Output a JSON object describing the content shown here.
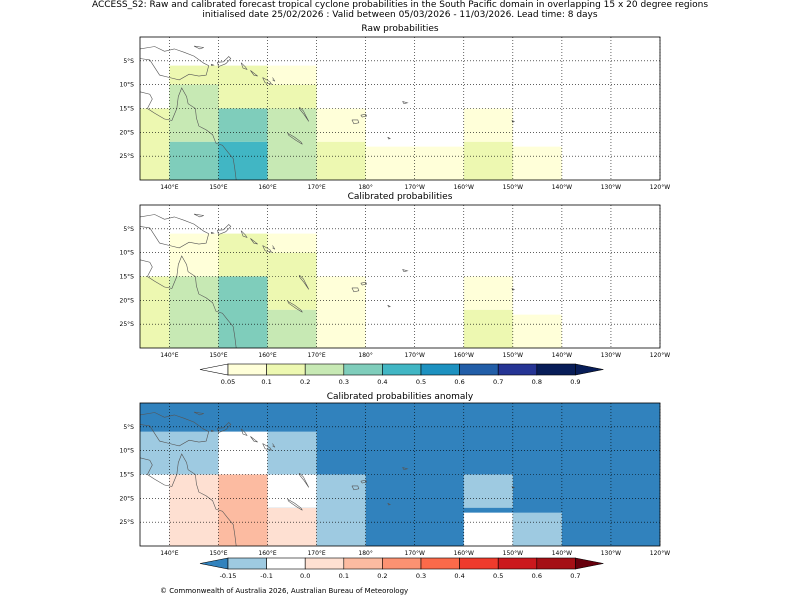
{
  "header": {
    "line1": "ACCESS_S2: Raw and calibrated forecast tropical cyclone probabilities in the South Pacific domain in overlapping 15 x 20 degree regions",
    "line2": "initialised date 25/02/2026 :  Valid between 05/03/2026 - 11/03/2026. Lead time: 8 days"
  },
  "footer": "© Commonwealth of Australia 2026, Australian Bureau of Meteorology",
  "lon_ticks": [
    "140°E",
    "150°E",
    "160°E",
    "170°E",
    "180°",
    "170°W",
    "160°W",
    "150°W",
    "140°W",
    "130°W",
    "120°W"
  ],
  "lat_ticks": [
    "5°S",
    "10°S",
    "15°S",
    "20°S",
    "25°S"
  ],
  "prob_colorbar": {
    "levels": [
      "0.05",
      "0.1",
      "0.2",
      "0.3",
      "0.4",
      "0.5",
      "0.6",
      "0.7",
      "0.8",
      "0.9"
    ],
    "colors": [
      "#ffffd9",
      "#edf8b1",
      "#c7e9b4",
      "#7fcdbb",
      "#41b6c4",
      "#1d91c0",
      "#225ea8",
      "#253494",
      "#081d58"
    ],
    "under": "#ffffff",
    "over": "#081d58"
  },
  "anom_colorbar": {
    "levels": [
      "-0.15",
      "-0.1",
      "0.0",
      "0.1",
      "0.2",
      "0.3",
      "0.4",
      "0.5",
      "0.6",
      "0.7"
    ],
    "colors": [
      "#9ecae1",
      "#ffffff",
      "#fee0d2",
      "#fcbba1",
      "#fc9272",
      "#fb6a4a",
      "#ef3b2c",
      "#cb181d",
      "#a50f15"
    ],
    "under": "#3182bd",
    "over": "#67000d"
  },
  "chart_data": [
    {
      "type": "heatmap",
      "title": "Raw probabilities",
      "lon_range": [
        134,
        240
      ],
      "lat_range": [
        -30,
        0
      ],
      "cells_unit": "probability",
      "cells": [
        {
          "lon": [
            134,
            140
          ],
          "lat": [
            -30,
            -15
          ],
          "value": 0.15
        },
        {
          "lon": [
            140,
            150
          ],
          "lat": [
            -10,
            -6
          ],
          "value": 0.1
        },
        {
          "lon": [
            150,
            160
          ],
          "lat": [
            -15,
            -6
          ],
          "value": 0.15
        },
        {
          "lon": [
            160,
            170
          ],
          "lat": [
            -10,
            -6
          ],
          "value": 0.05
        },
        {
          "lon": [
            160,
            170
          ],
          "lat": [
            -15,
            -10
          ],
          "value": 0.15
        },
        {
          "lon": [
            140,
            150
          ],
          "lat": [
            -22,
            -10
          ],
          "value": 0.25
        },
        {
          "lon": [
            140,
            150
          ],
          "lat": [
            -30,
            -22
          ],
          "value": 0.35
        },
        {
          "lon": [
            150,
            160
          ],
          "lat": [
            -22,
            -15
          ],
          "value": 0.35
        },
        {
          "lon": [
            150,
            160
          ],
          "lat": [
            -30,
            -22
          ],
          "value": 0.45
        },
        {
          "lon": [
            160,
            170
          ],
          "lat": [
            -30,
            -15
          ],
          "value": 0.25
        },
        {
          "lon": [
            170,
            180
          ],
          "lat": [
            -22,
            -15
          ],
          "value": 0.05
        },
        {
          "lon": [
            170,
            180
          ],
          "lat": [
            -30,
            -22
          ],
          "value": 0.15
        },
        {
          "lon": [
            180,
            200
          ],
          "lat": [
            -30,
            -23
          ],
          "value": 0.05
        },
        {
          "lon": [
            200,
            210
          ],
          "lat": [
            -22,
            -15
          ],
          "value": 0.05
        },
        {
          "lon": [
            200,
            210
          ],
          "lat": [
            -30,
            -22
          ],
          "value": 0.15
        },
        {
          "lon": [
            210,
            220
          ],
          "lat": [
            -30,
            -23
          ],
          "value": 0.05
        }
      ]
    },
    {
      "type": "heatmap",
      "title": "Calibrated probabilities",
      "lon_range": [
        134,
        240
      ],
      "lat_range": [
        -30,
        0
      ],
      "cells_unit": "probability",
      "cells": [
        {
          "lon": [
            134,
            140
          ],
          "lat": [
            -30,
            -15
          ],
          "value": 0.15
        },
        {
          "lon": [
            140,
            150
          ],
          "lat": [
            -15,
            -6
          ],
          "value": 0.05
        },
        {
          "lon": [
            150,
            160
          ],
          "lat": [
            -15,
            -6
          ],
          "value": 0.1
        },
        {
          "lon": [
            160,
            170
          ],
          "lat": [
            -10,
            -6
          ],
          "value": 0.05
        },
        {
          "lon": [
            160,
            170
          ],
          "lat": [
            -22,
            -10
          ],
          "value": 0.15
        },
        {
          "lon": [
            140,
            150
          ],
          "lat": [
            -30,
            -15
          ],
          "value": 0.25
        },
        {
          "lon": [
            150,
            160
          ],
          "lat": [
            -30,
            -15
          ],
          "value": 0.35
        },
        {
          "lon": [
            160,
            170
          ],
          "lat": [
            -30,
            -22
          ],
          "value": 0.25
        },
        {
          "lon": [
            170,
            180
          ],
          "lat": [
            -30,
            -15
          ],
          "value": 0.05
        },
        {
          "lon": [
            200,
            210
          ],
          "lat": [
            -22,
            -15
          ],
          "value": 0.05
        },
        {
          "lon": [
            200,
            210
          ],
          "lat": [
            -30,
            -22
          ],
          "value": 0.15
        },
        {
          "lon": [
            210,
            220
          ],
          "lat": [
            -30,
            -23
          ],
          "value": 0.05
        }
      ]
    },
    {
      "type": "heatmap",
      "title": "Calibrated probabilities anomaly",
      "lon_range": [
        134,
        240
      ],
      "lat_range": [
        -30,
        0
      ],
      "cells_unit": "probability anomaly",
      "cells": [
        {
          "lon": [
            134,
            240
          ],
          "lat": [
            -30,
            0
          ],
          "value": -0.2
        },
        {
          "lon": [
            134,
            150
          ],
          "lat": [
            -15,
            -6
          ],
          "value": -0.12
        },
        {
          "lon": [
            150,
            160
          ],
          "lat": [
            -15,
            -6
          ],
          "value": -0.05
        },
        {
          "lon": [
            160,
            170
          ],
          "lat": [
            -15,
            -6
          ],
          "value": -0.12
        },
        {
          "lon": [
            134,
            140
          ],
          "lat": [
            -30,
            -15
          ],
          "value": -0.05
        },
        {
          "lon": [
            140,
            150
          ],
          "lat": [
            -30,
            -15
          ],
          "value": 0.05
        },
        {
          "lon": [
            150,
            160
          ],
          "lat": [
            -30,
            -15
          ],
          "value": 0.15
        },
        {
          "lon": [
            160,
            170
          ],
          "lat": [
            -22,
            -15
          ],
          "value": -0.05
        },
        {
          "lon": [
            160,
            170
          ],
          "lat": [
            -30,
            -22
          ],
          "value": 0.05
        },
        {
          "lon": [
            170,
            180
          ],
          "lat": [
            -30,
            -15
          ],
          "value": -0.12
        },
        {
          "lon": [
            200,
            210
          ],
          "lat": [
            -22,
            -15
          ],
          "value": -0.12
        },
        {
          "lon": [
            200,
            210
          ],
          "lat": [
            -30,
            -23
          ],
          "value": -0.05
        },
        {
          "lon": [
            210,
            220
          ],
          "lat": [
            -30,
            -23
          ],
          "value": -0.12
        }
      ]
    }
  ]
}
